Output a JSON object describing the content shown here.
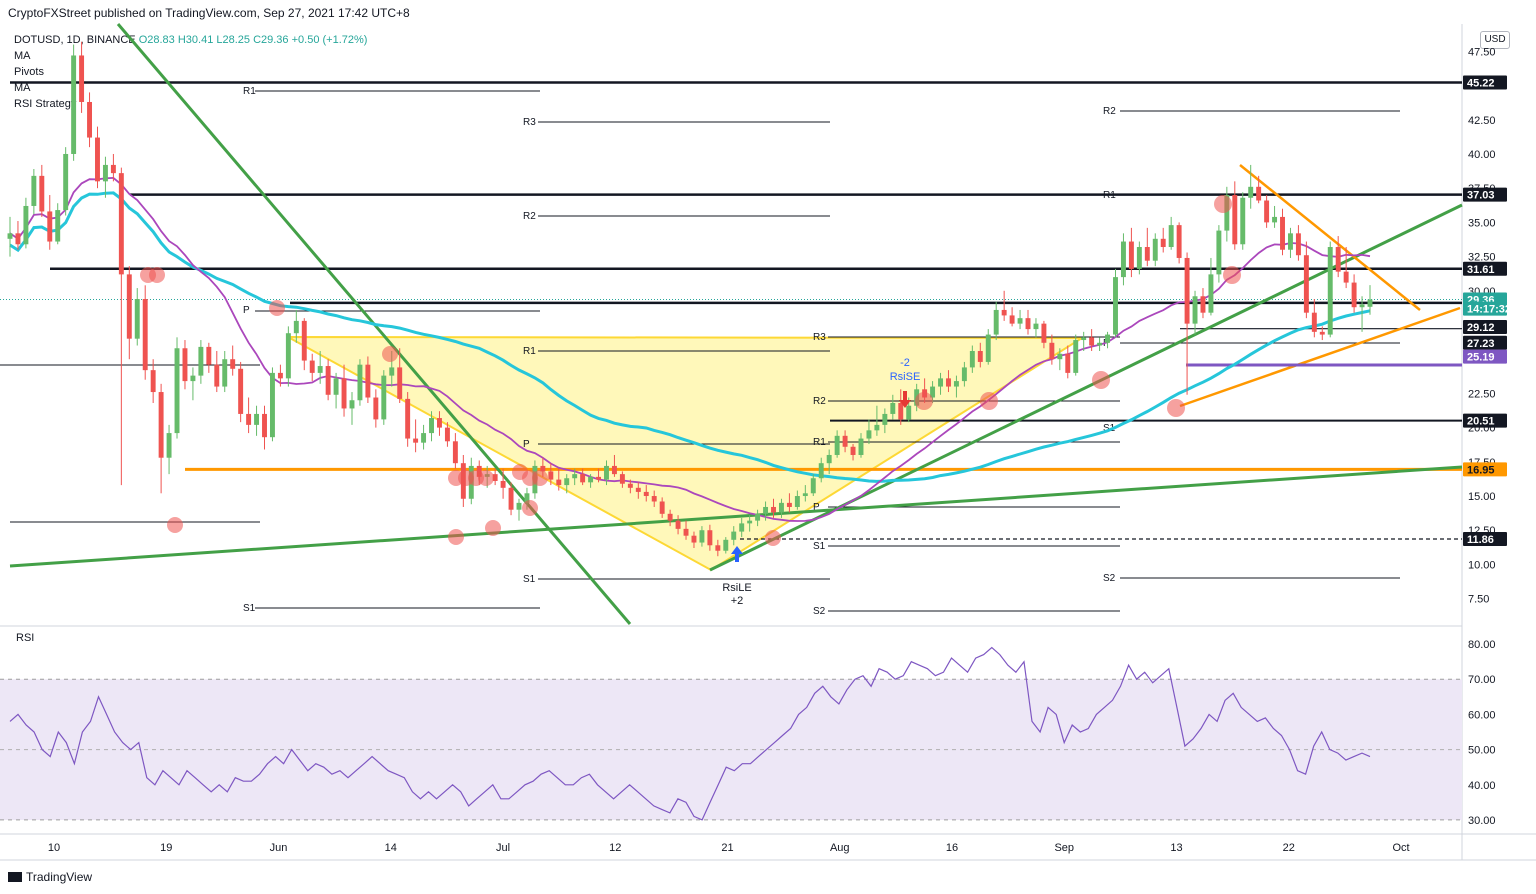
{
  "header": {
    "published": "CryptoFXStreet published on TradingView.com, Sep 27, 2021 17:42 UTC+8"
  },
  "legend": {
    "symbol": "DOTUSD, 1D, BINANCE",
    "ohlc": "O28.83  H30.41  L28.25  C29.36",
    "change": "+0.50 (+1.72%)",
    "indicators": [
      "MA",
      "Pivots",
      "MA",
      "RSI Strategy"
    ]
  },
  "currency_button": "USD",
  "rsi_title": "RSI",
  "brand": "TradingView",
  "colors": {
    "up": "#66bb6a",
    "down": "#ef5350",
    "ma_slow": "#26c6da",
    "ma_fast": "#ab47bc",
    "trend_green": "#43a047",
    "orange": "#ff9800",
    "purple_level": "#7e57c2",
    "triangle_fill": "#fff59d",
    "rsi_line": "#7e57c2",
    "rsi_band": "#ede7f6"
  },
  "chart_data": {
    "type": "candlestick",
    "title": "DOTUSD, 1D, BINANCE",
    "price_axis": {
      "ticks": [
        "47.50",
        "45.00",
        "42.50",
        "40.00",
        "37.50",
        "35.00",
        "32.50",
        "30.00",
        "27.50",
        "25.00",
        "22.50",
        "20.00",
        "17.50",
        "15.00",
        "12.50",
        "10.00",
        "7.50"
      ],
      "ylim": [
        5.5,
        49.5
      ]
    },
    "time_axis": [
      "10",
      "19",
      "Jun",
      "14",
      "Jul",
      "12",
      "21",
      "Aug",
      "16",
      "Sep",
      "13",
      "22",
      "Oct"
    ],
    "level_labels": [
      {
        "value": 45.22,
        "label": "45.22",
        "bg": "#131722",
        "fg": "#ffffff"
      },
      {
        "value": 37.03,
        "label": "37.03",
        "bg": "#131722",
        "fg": "#ffffff"
      },
      {
        "value": 31.61,
        "label": "31.61",
        "bg": "#131722",
        "fg": "#ffffff"
      },
      {
        "value": 29.36,
        "label": "29.36",
        "bg": "#26a69a",
        "fg": "#ffffff"
      },
      {
        "value": 28.7,
        "label": "14:17:32",
        "bg": "#26a69a",
        "fg": "#ffffff"
      },
      {
        "value": 27.35,
        "label": "29.12",
        "bg": "#131722",
        "fg": "#ffffff"
      },
      {
        "value": 26.2,
        "label": "27.23",
        "bg": "#131722",
        "fg": "#ffffff"
      },
      {
        "value": 25.19,
        "label": "25.19",
        "bg": "#7e57c2",
        "fg": "#ffffff"
      },
      {
        "value": 20.51,
        "label": "20.51",
        "bg": "#131722",
        "fg": "#ffffff"
      },
      {
        "value": 16.95,
        "label": "16.95",
        "bg": "#ff9800",
        "fg": "#131722"
      },
      {
        "value": 11.86,
        "label": "11.86",
        "bg": "#131722",
        "fg": "#ffffff"
      }
    ],
    "horizontal_levels": [
      45.22,
      37.03,
      31.61,
      29.12,
      27.23,
      25.19,
      20.51,
      16.95,
      11.86
    ],
    "pivot_labels": [
      "R1",
      "P",
      "S1",
      "R3",
      "R2",
      "R1",
      "P",
      "S1",
      "R3",
      "R2",
      "R1",
      "P",
      "S1",
      "S2",
      "R2",
      "R1",
      "P",
      "S1",
      "S2"
    ],
    "signals": [
      {
        "label": "RsiLE",
        "value": "+2"
      },
      {
        "label": "RsiSE",
        "value": "-2"
      }
    ],
    "candles": [
      [
        33.8,
        35.4,
        32.5,
        34.2
      ],
      [
        34.2,
        35.1,
        33.0,
        33.4
      ],
      [
        33.4,
        36.8,
        33.1,
        36.2
      ],
      [
        36.2,
        38.9,
        35.6,
        38.4
      ],
      [
        38.4,
        39.2,
        35.4,
        35.8
      ],
      [
        35.8,
        37.0,
        33.0,
        33.6
      ],
      [
        33.6,
        36.4,
        33.4,
        35.9
      ],
      [
        35.9,
        40.5,
        35.5,
        40.0
      ],
      [
        40.0,
        48.0,
        39.5,
        47.2
      ],
      [
        47.2,
        48.2,
        43.0,
        43.8
      ],
      [
        43.8,
        44.5,
        40.5,
        41.2
      ],
      [
        41.2,
        42.0,
        37.5,
        38.0
      ],
      [
        38.0,
        39.8,
        36.8,
        39.2
      ],
      [
        39.2,
        40.0,
        38.0,
        38.6
      ],
      [
        38.6,
        39.0,
        15.8,
        31.2
      ],
      [
        31.2,
        31.8,
        25.0,
        26.5
      ],
      [
        26.5,
        30.2,
        26.0,
        29.4
      ],
      [
        29.4,
        30.4,
        23.5,
        24.2
      ],
      [
        24.2,
        25.0,
        21.8,
        22.6
      ],
      [
        22.6,
        23.2,
        15.2,
        17.8
      ],
      [
        17.8,
        20.2,
        16.6,
        19.6
      ],
      [
        19.6,
        26.6,
        19.2,
        25.8
      ],
      [
        25.8,
        26.4,
        22.8,
        23.4
      ],
      [
        23.4,
        24.4,
        22.0,
        23.8
      ],
      [
        23.8,
        26.4,
        23.2,
        25.9
      ],
      [
        25.9,
        26.2,
        24.0,
        24.6
      ],
      [
        24.6,
        25.6,
        22.6,
        23.0
      ],
      [
        23.0,
        25.6,
        22.6,
        25.0
      ],
      [
        25.0,
        26.0,
        23.8,
        24.3
      ],
      [
        24.3,
        24.8,
        20.4,
        21.0
      ],
      [
        21.0,
        22.2,
        19.6,
        20.2
      ],
      [
        20.2,
        21.6,
        19.4,
        21.0
      ],
      [
        21.0,
        21.6,
        18.4,
        19.3
      ],
      [
        19.3,
        24.4,
        19.0,
        24.0
      ],
      [
        24.0,
        24.6,
        23.0,
        23.6
      ],
      [
        23.6,
        27.4,
        23.0,
        26.9
      ],
      [
        26.9,
        28.6,
        26.2,
        27.8
      ],
      [
        27.8,
        28.0,
        24.2,
        24.9
      ],
      [
        24.9,
        25.4,
        23.4,
        24.0
      ],
      [
        24.0,
        25.6,
        23.2,
        24.5
      ],
      [
        24.5,
        25.0,
        22.0,
        22.4
      ],
      [
        22.4,
        24.0,
        21.4,
        23.6
      ],
      [
        23.6,
        24.6,
        20.8,
        21.4
      ],
      [
        21.4,
        22.6,
        20.2,
        22.0
      ],
      [
        22.0,
        25.0,
        21.6,
        24.6
      ],
      [
        24.6,
        25.2,
        21.8,
        22.2
      ],
      [
        22.2,
        22.8,
        20.0,
        20.6
      ],
      [
        20.6,
        24.2,
        20.2,
        23.8
      ],
      [
        23.8,
        25.6,
        23.0,
        24.4
      ],
      [
        24.4,
        25.8,
        21.8,
        22.1
      ],
      [
        22.1,
        22.6,
        18.6,
        19.2
      ],
      [
        19.2,
        20.6,
        18.2,
        18.9
      ],
      [
        18.9,
        20.2,
        18.4,
        19.6
      ],
      [
        19.6,
        21.2,
        19.0,
        20.7
      ],
      [
        20.7,
        21.2,
        19.4,
        20.0
      ],
      [
        20.0,
        20.4,
        18.6,
        19.0
      ],
      [
        19.0,
        19.6,
        17.0,
        17.4
      ],
      [
        17.4,
        18.0,
        14.2,
        14.8
      ],
      [
        14.8,
        17.8,
        14.4,
        17.2
      ],
      [
        17.2,
        17.6,
        15.8,
        16.4
      ],
      [
        16.4,
        17.2,
        15.6,
        16.6
      ],
      [
        16.6,
        17.0,
        15.8,
        16.1
      ],
      [
        16.1,
        17.0,
        14.8,
        15.6
      ],
      [
        15.6,
        16.0,
        13.6,
        14.0
      ],
      [
        14.0,
        14.8,
        13.2,
        14.5
      ],
      [
        14.5,
        15.6,
        14.0,
        15.2
      ],
      [
        15.2,
        17.6,
        14.8,
        17.2
      ],
      [
        17.2,
        17.8,
        16.4,
        16.8
      ],
      [
        16.8,
        17.4,
        15.8,
        16.2
      ],
      [
        16.2,
        17.0,
        15.4,
        15.8
      ],
      [
        15.8,
        16.6,
        15.2,
        16.3
      ],
      [
        16.3,
        17.0,
        15.8,
        16.6
      ],
      [
        16.6,
        17.0,
        15.8,
        16.0
      ],
      [
        16.0,
        16.6,
        15.6,
        16.4
      ],
      [
        16.4,
        17.0,
        16.0,
        16.2
      ],
      [
        16.2,
        17.6,
        15.8,
        17.2
      ],
      [
        17.2,
        18.0,
        16.4,
        16.6
      ],
      [
        16.6,
        16.8,
        15.6,
        15.9
      ],
      [
        15.9,
        16.2,
        15.2,
        15.6
      ],
      [
        15.6,
        16.0,
        14.8,
        15.3
      ],
      [
        15.3,
        15.8,
        14.6,
        15.0
      ],
      [
        15.0,
        15.4,
        14.2,
        14.6
      ],
      [
        14.6,
        14.9,
        13.4,
        13.7
      ],
      [
        13.7,
        14.0,
        12.8,
        13.2
      ],
      [
        13.2,
        13.6,
        12.2,
        12.6
      ],
      [
        12.6,
        13.2,
        11.8,
        12.1
      ],
      [
        12.1,
        12.4,
        11.2,
        11.6
      ],
      [
        11.6,
        12.8,
        11.3,
        12.5
      ],
      [
        12.5,
        12.9,
        11.0,
        11.4
      ],
      [
        11.4,
        11.8,
        10.6,
        11.0
      ],
      [
        11.0,
        12.0,
        10.8,
        11.8
      ],
      [
        11.8,
        12.8,
        11.4,
        12.4
      ],
      [
        12.4,
        13.4,
        12.0,
        13.0
      ],
      [
        13.0,
        13.6,
        12.4,
        13.2
      ],
      [
        13.2,
        14.0,
        12.8,
        13.7
      ],
      [
        13.7,
        14.6,
        13.2,
        14.2
      ],
      [
        14.2,
        14.8,
        13.4,
        13.8
      ],
      [
        13.8,
        14.8,
        13.4,
        14.5
      ],
      [
        14.5,
        15.2,
        13.8,
        14.2
      ],
      [
        14.2,
        15.4,
        14.0,
        15.0
      ],
      [
        15.0,
        15.8,
        14.6,
        15.2
      ],
      [
        15.2,
        16.6,
        15.0,
        16.3
      ],
      [
        16.3,
        17.8,
        16.0,
        17.4
      ],
      [
        17.4,
        18.4,
        16.6,
        18.0
      ],
      [
        18.0,
        19.8,
        17.8,
        19.4
      ],
      [
        19.4,
        19.8,
        18.2,
        18.6
      ],
      [
        18.6,
        18.8,
        17.6,
        18.0
      ],
      [
        18.0,
        19.6,
        17.8,
        19.2
      ],
      [
        19.2,
        20.6,
        18.8,
        19.8
      ],
      [
        19.8,
        21.6,
        19.4,
        20.2
      ],
      [
        20.2,
        21.4,
        19.6,
        21.0
      ],
      [
        21.0,
        22.4,
        20.6,
        21.8
      ],
      [
        21.8,
        22.8,
        20.2,
        20.6
      ],
      [
        20.6,
        22.2,
        20.4,
        21.6
      ],
      [
        21.6,
        23.2,
        21.2,
        22.8
      ],
      [
        22.8,
        23.6,
        21.8,
        22.2
      ],
      [
        22.2,
        23.4,
        21.8,
        23.0
      ],
      [
        23.0,
        24.0,
        22.4,
        23.6
      ],
      [
        23.6,
        24.2,
        22.6,
        23.0
      ],
      [
        23.0,
        23.8,
        22.2,
        23.4
      ],
      [
        23.4,
        24.8,
        23.0,
        24.4
      ],
      [
        24.4,
        26.0,
        24.0,
        25.6
      ],
      [
        25.6,
        26.2,
        24.4,
        24.8
      ],
      [
        24.8,
        27.2,
        24.6,
        26.8
      ],
      [
        26.8,
        29.2,
        26.4,
        28.6
      ],
      [
        28.6,
        30.0,
        27.8,
        28.2
      ],
      [
        28.2,
        28.8,
        27.4,
        27.6
      ],
      [
        27.6,
        28.6,
        27.2,
        28.0
      ],
      [
        28.0,
        28.6,
        26.8,
        27.2
      ],
      [
        27.2,
        28.0,
        26.6,
        27.6
      ],
      [
        27.6,
        27.8,
        25.8,
        26.2
      ],
      [
        26.2,
        26.8,
        24.6,
        25.0
      ],
      [
        25.0,
        25.8,
        24.2,
        25.4
      ],
      [
        25.4,
        26.0,
        23.6,
        24.0
      ],
      [
        24.0,
        26.8,
        23.8,
        26.4
      ],
      [
        26.4,
        27.0,
        25.6,
        26.6
      ],
      [
        26.6,
        27.2,
        25.6,
        26.0
      ],
      [
        26.0,
        26.6,
        25.6,
        26.2
      ],
      [
        26.2,
        27.0,
        25.8,
        26.8
      ],
      [
        26.8,
        31.6,
        26.6,
        31.0
      ],
      [
        31.0,
        34.2,
        30.4,
        33.6
      ],
      [
        33.6,
        34.6,
        31.0,
        31.6
      ],
      [
        31.6,
        33.6,
        31.2,
        33.2
      ],
      [
        33.2,
        34.6,
        31.8,
        32.2
      ],
      [
        32.2,
        34.2,
        31.8,
        33.8
      ],
      [
        33.8,
        34.6,
        32.8,
        33.2
      ],
      [
        33.2,
        35.4,
        33.0,
        34.8
      ],
      [
        34.8,
        35.0,
        32.0,
        32.4
      ],
      [
        32.4,
        32.8,
        22.4,
        27.6
      ],
      [
        27.6,
        30.0,
        26.8,
        29.6
      ],
      [
        29.6,
        30.2,
        28.0,
        28.4
      ],
      [
        28.4,
        32.4,
        28.2,
        31.2
      ],
      [
        31.2,
        34.8,
        30.6,
        34.4
      ],
      [
        34.4,
        37.6,
        33.6,
        37.0
      ],
      [
        37.0,
        38.0,
        33.0,
        33.4
      ],
      [
        33.4,
        37.2,
        33.0,
        36.8
      ],
      [
        36.8,
        39.2,
        36.0,
        37.6
      ],
      [
        37.6,
        38.4,
        36.4,
        36.6
      ],
      [
        36.6,
        37.0,
        34.6,
        35.0
      ],
      [
        35.0,
        36.2,
        34.6,
        35.4
      ],
      [
        35.4,
        36.0,
        32.6,
        33.0
      ],
      [
        33.0,
        34.6,
        32.4,
        34.2
      ],
      [
        34.2,
        34.8,
        32.2,
        32.6
      ],
      [
        32.6,
        33.6,
        28.0,
        28.4
      ],
      [
        28.4,
        29.4,
        26.6,
        27.0
      ],
      [
        27.0,
        27.4,
        26.4,
        26.8
      ],
      [
        26.8,
        33.6,
        26.6,
        33.2
      ],
      [
        33.2,
        34.0,
        31.0,
        31.4
      ],
      [
        31.4,
        33.2,
        30.2,
        30.6
      ],
      [
        30.6,
        31.2,
        28.4,
        28.8
      ],
      [
        28.8,
        29.6,
        27.0,
        29.0
      ],
      [
        28.83,
        30.41,
        28.25,
        29.36
      ]
    ],
    "rsi": {
      "ticks": [
        "80.00",
        "70.00",
        "60.00",
        "50.00",
        "40.00",
        "30.00"
      ],
      "ylim": [
        26,
        84
      ],
      "upper": 70,
      "mid": 50,
      "lower": 30,
      "values": [
        58,
        60,
        57,
        55,
        50,
        48,
        55,
        52,
        46,
        55,
        58,
        65,
        60,
        55,
        52,
        50,
        52,
        42,
        40,
        44,
        42,
        40,
        44,
        42,
        40,
        38,
        40,
        38,
        42,
        41,
        41,
        43,
        46,
        48,
        46,
        50,
        47,
        44,
        46,
        45,
        43,
        44,
        42,
        44,
        46,
        48,
        46,
        44,
        43,
        42,
        38,
        36,
        38,
        36,
        38,
        40,
        38,
        34,
        36,
        38,
        40,
        36,
        36,
        38,
        40,
        41,
        43,
        44,
        42,
        40,
        40,
        42,
        43,
        40,
        38,
        36,
        38,
        40,
        38,
        36,
        34,
        33,
        32,
        36,
        35,
        31,
        30,
        35,
        40,
        45,
        44,
        46,
        46,
        48,
        50,
        52,
        54,
        56,
        60,
        62,
        66,
        68,
        65,
        63,
        67,
        70,
        71,
        68,
        73,
        72,
        70,
        71,
        75,
        74,
        73,
        71,
        72,
        76,
        74,
        72,
        76,
        77,
        79,
        77,
        74,
        72,
        75,
        58,
        55,
        62,
        60,
        52,
        57,
        55,
        56,
        60,
        62,
        64,
        68,
        74,
        70,
        72,
        69,
        71,
        73,
        62,
        51,
        53,
        56,
        60,
        58,
        64,
        66,
        62,
        60,
        58,
        59,
        56,
        54,
        50,
        44,
        43,
        51,
        55,
        50,
        49,
        47,
        48,
        49,
        48
      ]
    }
  }
}
